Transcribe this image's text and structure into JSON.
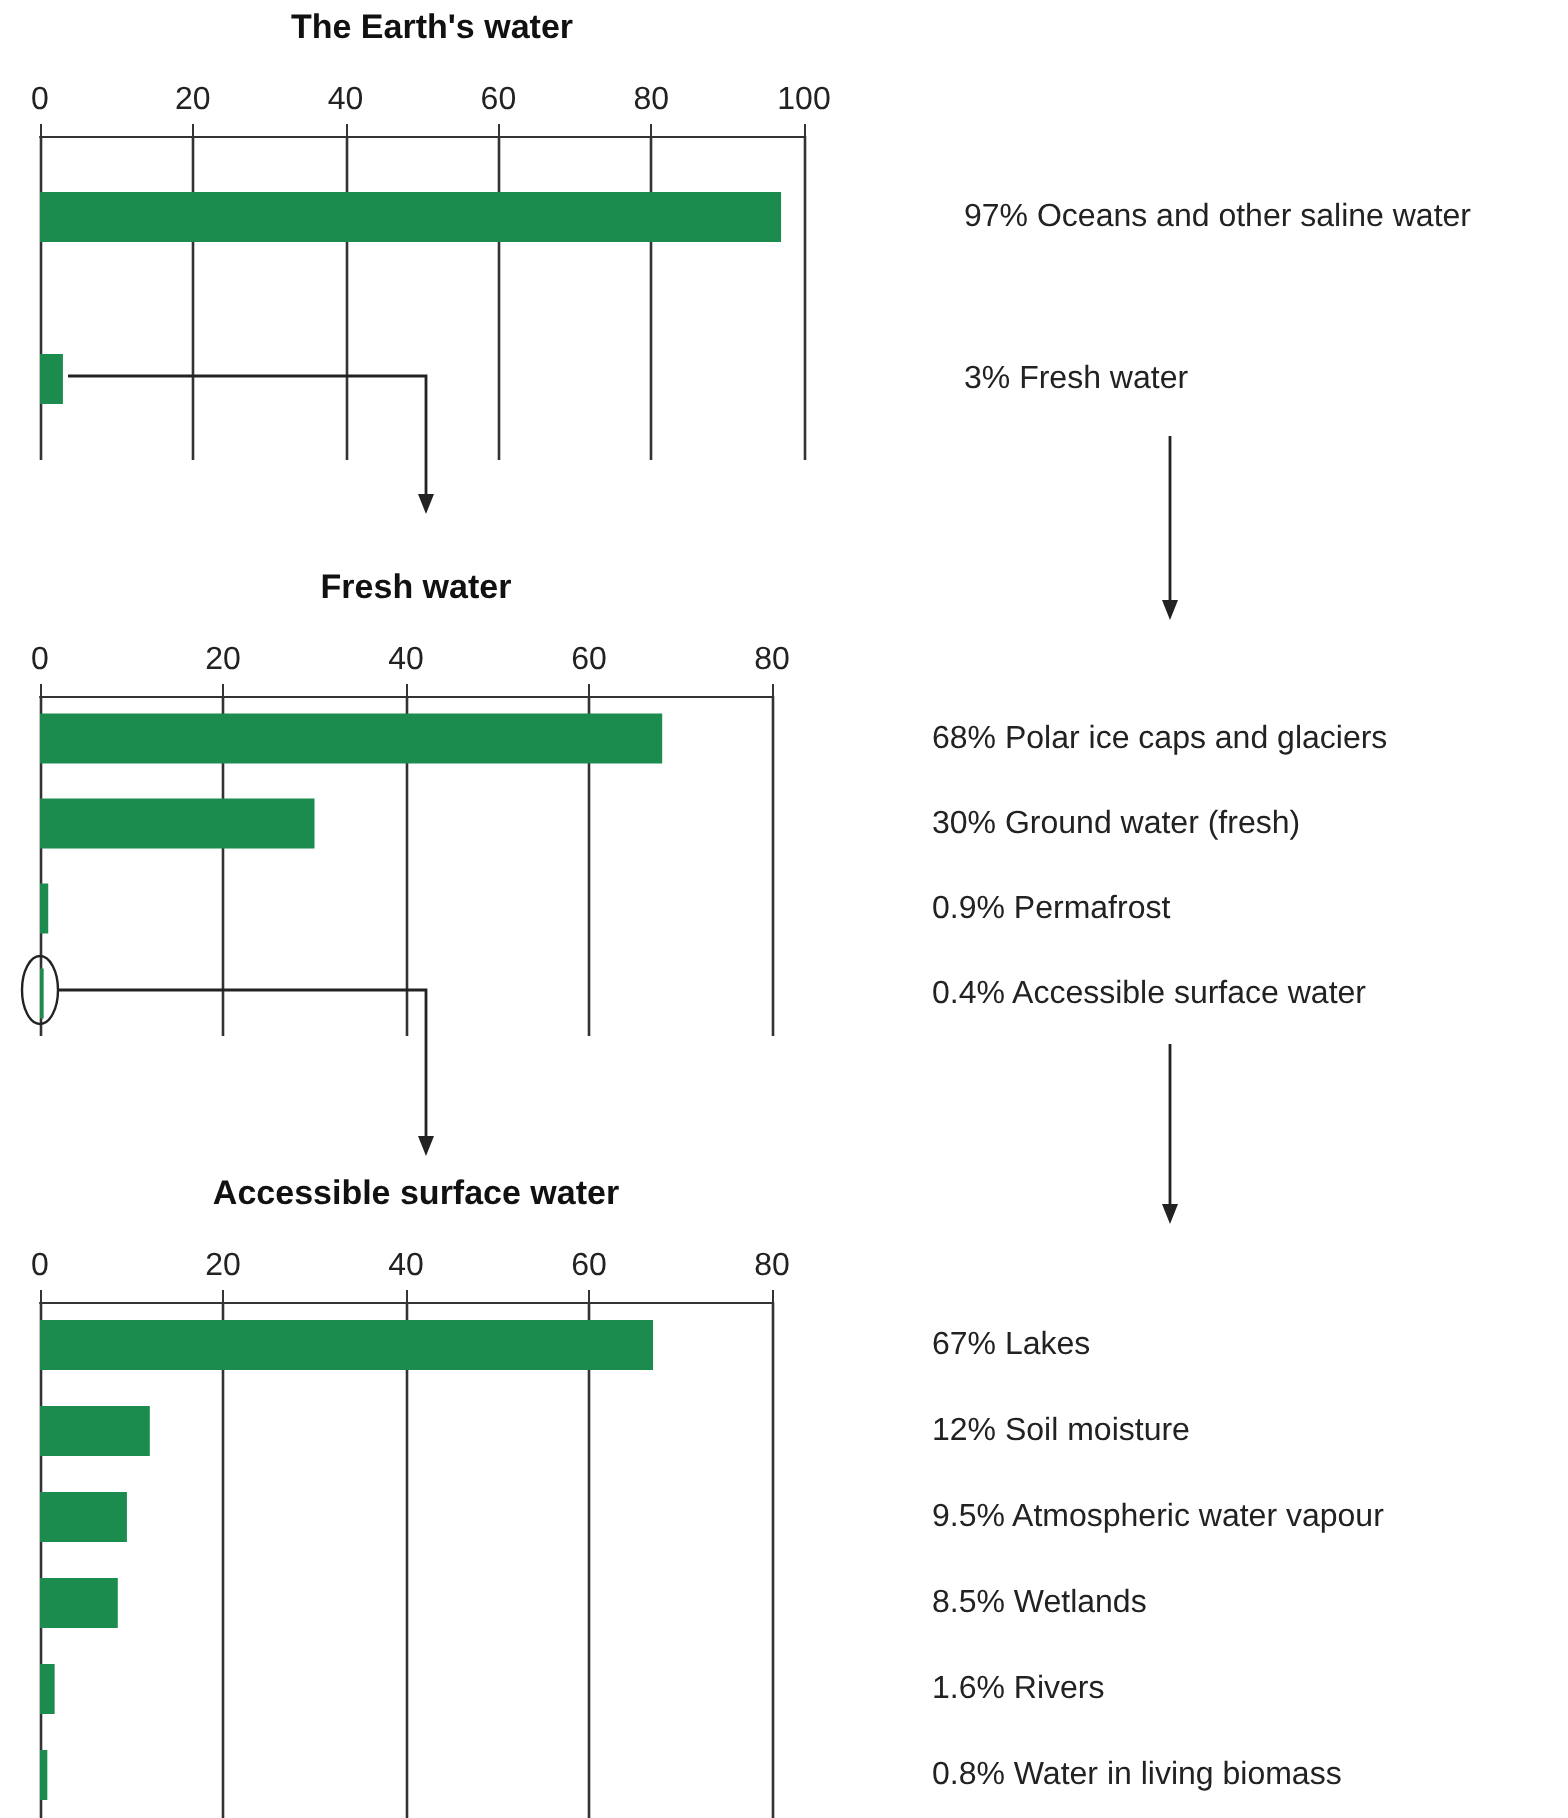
{
  "chart_data": [
    {
      "type": "bar",
      "orientation": "horizontal",
      "title": "The Earth's water",
      "categories": [
        "97% Oceans and other saline water",
        "3% Fresh water"
      ],
      "values": [
        97,
        3
      ],
      "color": "#1b8c4e",
      "xlim": [
        0,
        100
      ],
      "xticks": [
        0,
        20,
        40,
        60,
        80,
        100
      ],
      "grid": "x"
    },
    {
      "type": "bar",
      "orientation": "horizontal",
      "title": "Fresh water",
      "categories": [
        "68% Polar ice caps and glaciers",
        "30% Ground water (fresh)",
        "0.9% Permafrost",
        "0.4% Accessible surface water"
      ],
      "values": [
        68,
        30,
        0.9,
        0.4
      ],
      "color": "#1b8c4e",
      "xlim": [
        0,
        80
      ],
      "xticks": [
        0,
        20,
        40,
        60,
        80
      ],
      "grid": "x"
    },
    {
      "type": "bar",
      "orientation": "horizontal",
      "title": "Accessible surface water",
      "categories": [
        "67% Lakes",
        "12% Soil moisture",
        "9.5% Atmospheric water vapour",
        "8.5% Wetlands",
        "1.6% Rivers",
        "0.8% Water in living biomass"
      ],
      "values": [
        67,
        12,
        9.5,
        8.5,
        1.6,
        0.8
      ],
      "color": "#1b8c4e",
      "xlim": [
        0,
        80
      ],
      "xticks": [
        0,
        20,
        40,
        60,
        80
      ],
      "grid": "x"
    }
  ]
}
